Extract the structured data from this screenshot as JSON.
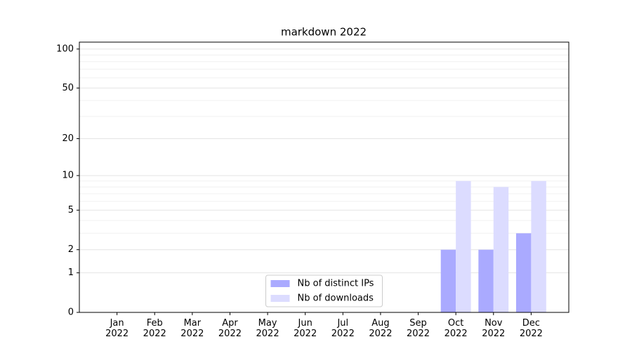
{
  "chart_data": {
    "type": "bar",
    "title": "markdown 2022",
    "categories": [
      "Jan\n2022",
      "Feb\n2022",
      "Mar\n2022",
      "Apr\n2022",
      "May\n2022",
      "Jun\n2022",
      "Jul\n2022",
      "Aug\n2022",
      "Sep\n2022",
      "Oct\n2022",
      "Nov\n2022",
      "Dec\n2022"
    ],
    "series": [
      {
        "name": "Nb of distinct IPs",
        "color": "#aaaaff",
        "values": [
          0,
          0,
          0,
          0,
          0,
          0,
          0,
          0,
          0,
          2,
          2,
          3
        ]
      },
      {
        "name": "Nb of downloads",
        "color": "#dcdcff",
        "values": [
          0,
          0,
          0,
          0,
          0,
          0,
          0,
          0,
          0,
          9,
          8,
          9
        ]
      }
    ],
    "y_scale": "log1p",
    "ylim": [
      0,
      113
    ],
    "yticks": [
      0,
      1,
      2,
      5,
      10,
      20,
      50,
      100
    ],
    "minor_yticks": [
      3,
      4,
      6,
      7,
      8,
      9,
      30,
      40,
      60,
      70,
      80,
      90
    ],
    "grid": true,
    "legend": "lower center"
  }
}
